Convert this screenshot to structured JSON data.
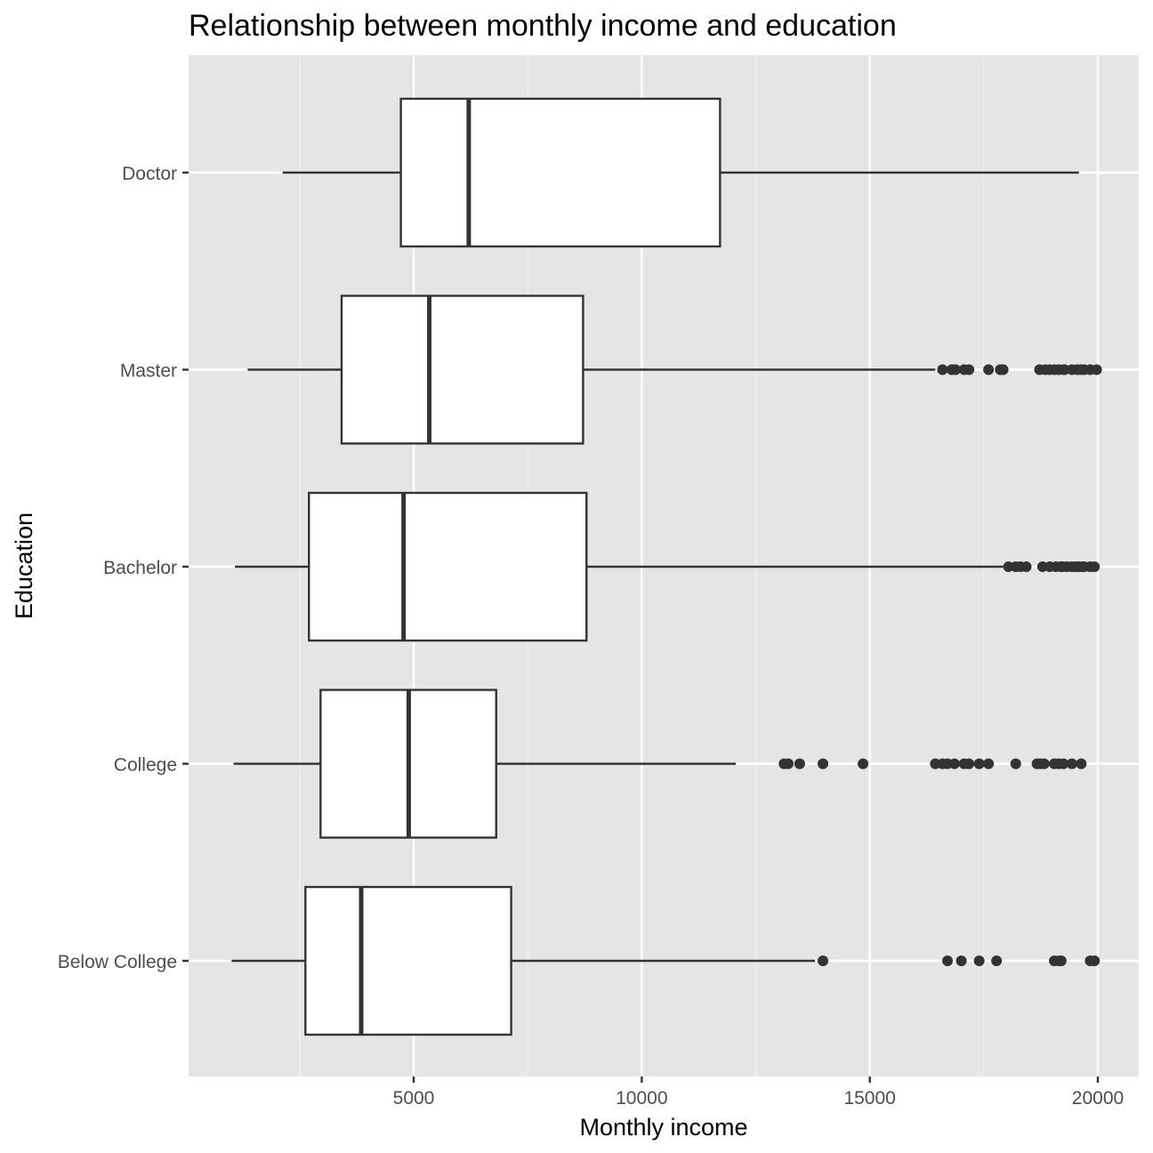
{
  "chart_data": {
    "type": "boxplot",
    "orientation": "horizontal",
    "title": "Relationship between monthly income and education",
    "xlabel": "Monthly income",
    "ylabel": "Education",
    "xlim": [
      0,
      21000
    ],
    "x_ticks": [
      5000,
      10000,
      15000,
      20000
    ],
    "x_tick_labels": [
      "5000",
      "10000",
      "15000",
      "20000"
    ],
    "categories": [
      "Below College",
      "College",
      "Bachelor",
      "Master",
      "Doctor"
    ],
    "grid": true,
    "series": [
      {
        "category": "Below College",
        "whisker_low": 1009,
        "q1": 2626,
        "median": 3849,
        "q3": 7137,
        "whisker_high": 13800,
        "outliers": [
          13973,
          16704,
          17007,
          17399,
          17779,
          19045,
          19144,
          19197,
          19833,
          19926
        ]
      },
      {
        "category": "College",
        "whisker_low": 1051,
        "q1": 2958,
        "median": 4891,
        "q3": 6809,
        "whisker_high": 12061,
        "outliers": [
          13120,
          13212,
          13463,
          13973,
          14852,
          16437,
          16595,
          16704,
          16856,
          17068,
          17174,
          17399,
          17603,
          18200,
          18665,
          18740,
          18824,
          19045,
          19144,
          19246,
          19431,
          19636
        ]
      },
      {
        "category": "Bachelor",
        "whisker_low": 1081,
        "q1": 2703,
        "median": 4778,
        "q3": 8789,
        "whisker_high": 17924,
        "outliers": [
          18041,
          18200,
          18303,
          18430,
          18789,
          18947,
          19081,
          19189,
          19232,
          19328,
          19431,
          19517,
          19586,
          19665,
          19701,
          19833,
          19926
        ]
      },
      {
        "category": "Master",
        "whisker_low": 1359,
        "q1": 3420,
        "median": 5341,
        "q3": 8713,
        "whisker_high": 16437,
        "outliers": [
          16595,
          16799,
          16880,
          17068,
          17174,
          17603,
          17861,
          17924,
          18722,
          18844,
          18947,
          19049,
          19141,
          19246,
          19272,
          19431,
          19545,
          19626,
          19701,
          19833,
          19973
        ]
      },
      {
        "category": "Doctor",
        "whisker_low": 2127,
        "q1": 4719,
        "median": 6207,
        "q3": 11717,
        "whisker_high": 19586,
        "outliers": []
      }
    ]
  }
}
